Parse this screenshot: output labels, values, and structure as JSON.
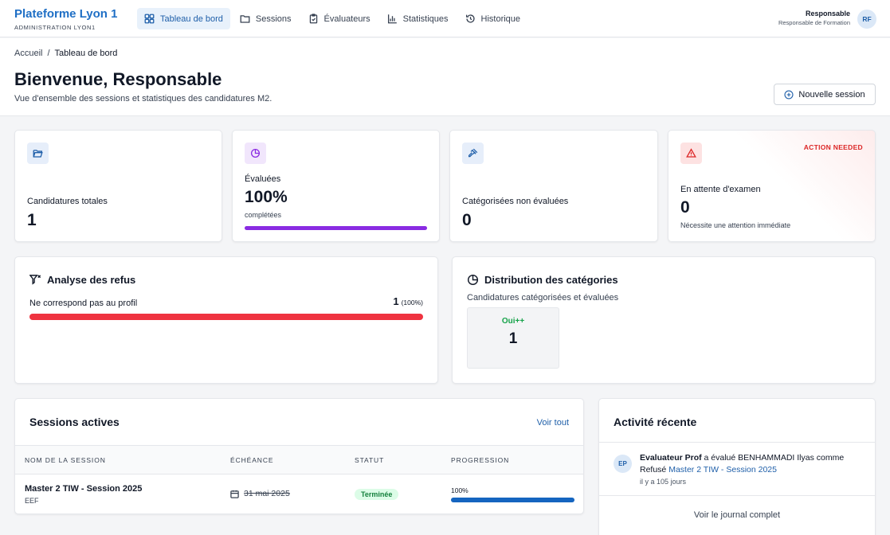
{
  "app": {
    "title": "Plateforme Lyon 1",
    "subtitle": "ADMINISTRATION LYON1"
  },
  "nav": {
    "items": [
      {
        "label": "Tableau de bord",
        "icon": "dashboard-icon",
        "active": true
      },
      {
        "label": "Sessions",
        "icon": "folder-icon",
        "active": false
      },
      {
        "label": "Évaluateurs",
        "icon": "clipboard-check-icon",
        "active": false
      },
      {
        "label": "Statistiques",
        "icon": "bar-chart-icon",
        "active": false
      },
      {
        "label": "Historique",
        "icon": "history-icon",
        "active": false
      }
    ]
  },
  "user": {
    "name": "Responsable",
    "role": "Responsable de Formation",
    "initials": "RF"
  },
  "breadcrumb": {
    "home": "Accueil",
    "separator": "/",
    "current": "Tableau de bord"
  },
  "header": {
    "title": "Bienvenue, Responsable",
    "subtitle": "Vue d'ensemble des sessions et statistiques des candidatures M2.",
    "new_session_label": "Nouvelle session"
  },
  "stats": {
    "total": {
      "label": "Candidatures totales",
      "value": "1",
      "icon": "folder-open-icon",
      "color": "#1f5fa9"
    },
    "evaluated": {
      "label": "Évaluées",
      "value": "100%",
      "note": "complétées",
      "progress": 1.0,
      "icon": "pie-chart-icon",
      "color": "#8a2be2"
    },
    "categorized": {
      "label": "Catégorisées non évaluées",
      "value": "0",
      "icon": "gavel-icon",
      "color": "#1f5fa9"
    },
    "pending": {
      "label": "En attente d'examen",
      "value": "0",
      "note": "Nécessite une attention immédiate",
      "badge": "ACTION NEEDED",
      "icon": "warning-icon",
      "color": "#dc2626"
    }
  },
  "refusal": {
    "title": "Analyse des refus",
    "reason": "Ne correspond pas au profil",
    "count": "1",
    "percent": "(100%)",
    "share": 1.0
  },
  "distribution": {
    "title": "Distribution des catégories",
    "subtitle": "Candidatures catégorisées et évaluées",
    "categories": [
      {
        "name": "Oui++",
        "count": "1"
      }
    ]
  },
  "sessions": {
    "title": "Sessions actives",
    "see_all": "Voir tout",
    "columns": [
      "NOM DE LA SESSION",
      "ÉCHÉANCE",
      "STATUT",
      "PROGRESSION"
    ],
    "rows": [
      {
        "name": "Master 2 TIW - Session 2025",
        "code": "EEF",
        "deadline": "31 mai 2025",
        "status": "Terminée",
        "progress_label": "100%",
        "progress": 1.0
      }
    ]
  },
  "activity": {
    "title": "Activité récente",
    "items": [
      {
        "initials": "EP",
        "actor": "Evaluateur Prof",
        "verb": "a évalué BENHAMMADI Ilyas comme Refusé",
        "target": "Master 2 TIW - Session 2025",
        "time": "il y a 105 jours"
      }
    ],
    "journal_link": "Voir le journal complet"
  }
}
